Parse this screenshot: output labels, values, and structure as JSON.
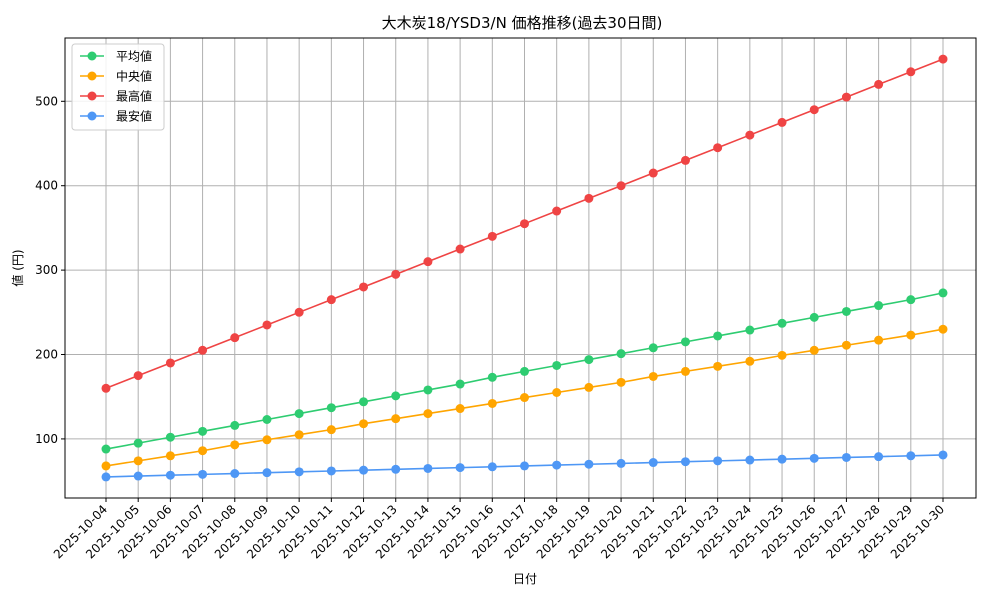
{
  "chart_data": {
    "type": "line",
    "title": "大木炭18/YSD3/N 価格推移(過去30日間)",
    "xlabel": "日付",
    "ylabel": "値 (円)",
    "categories": [
      "2025-10-04",
      "2025-10-05",
      "2025-10-06",
      "2025-10-07",
      "2025-10-08",
      "2025-10-09",
      "2025-10-10",
      "2025-10-11",
      "2025-10-12",
      "2025-10-13",
      "2025-10-14",
      "2025-10-15",
      "2025-10-16",
      "2025-10-17",
      "2025-10-18",
      "2025-10-19",
      "2025-10-20",
      "2025-10-21",
      "2025-10-22",
      "2025-10-23",
      "2025-10-24",
      "2025-10-25",
      "2025-10-26",
      "2025-10-27",
      "2025-10-28",
      "2025-10-29",
      "2025-10-30"
    ],
    "ylim": [
      30,
      575
    ],
    "yticks": [
      100,
      200,
      300,
      400,
      500
    ],
    "grid": true,
    "legend_position": "top-left",
    "series": [
      {
        "name": "平均値",
        "color": "#2ecc71",
        "values": [
          88,
          95,
          102,
          109,
          116,
          123,
          130,
          137,
          144,
          151,
          158,
          165,
          173,
          180,
          187,
          194,
          201,
          208,
          215,
          222,
          229,
          237,
          244,
          251,
          258,
          265,
          273
        ]
      },
      {
        "name": "中央値",
        "color": "#ffa500",
        "values": [
          68,
          74,
          80,
          86,
          93,
          99,
          105,
          111,
          118,
          124,
          130,
          136,
          142,
          149,
          155,
          161,
          167,
          174,
          180,
          186,
          192,
          199,
          205,
          211,
          217,
          223,
          230
        ]
      },
      {
        "name": "最高値",
        "color": "#ef4444",
        "values": [
          160,
          175,
          190,
          205,
          220,
          235,
          250,
          265,
          280,
          295,
          310,
          325,
          340,
          355,
          370,
          385,
          400,
          415,
          430,
          445,
          460,
          475,
          490,
          505,
          520,
          535,
          550
        ]
      },
      {
        "name": "最安値",
        "color": "#4e97f5",
        "values": [
          55,
          56,
          57,
          58,
          59,
          60,
          61,
          62,
          63,
          64,
          65,
          66,
          67,
          68,
          69,
          70,
          71,
          72,
          73,
          74,
          75,
          76,
          77,
          78,
          79,
          80,
          81
        ]
      }
    ]
  }
}
